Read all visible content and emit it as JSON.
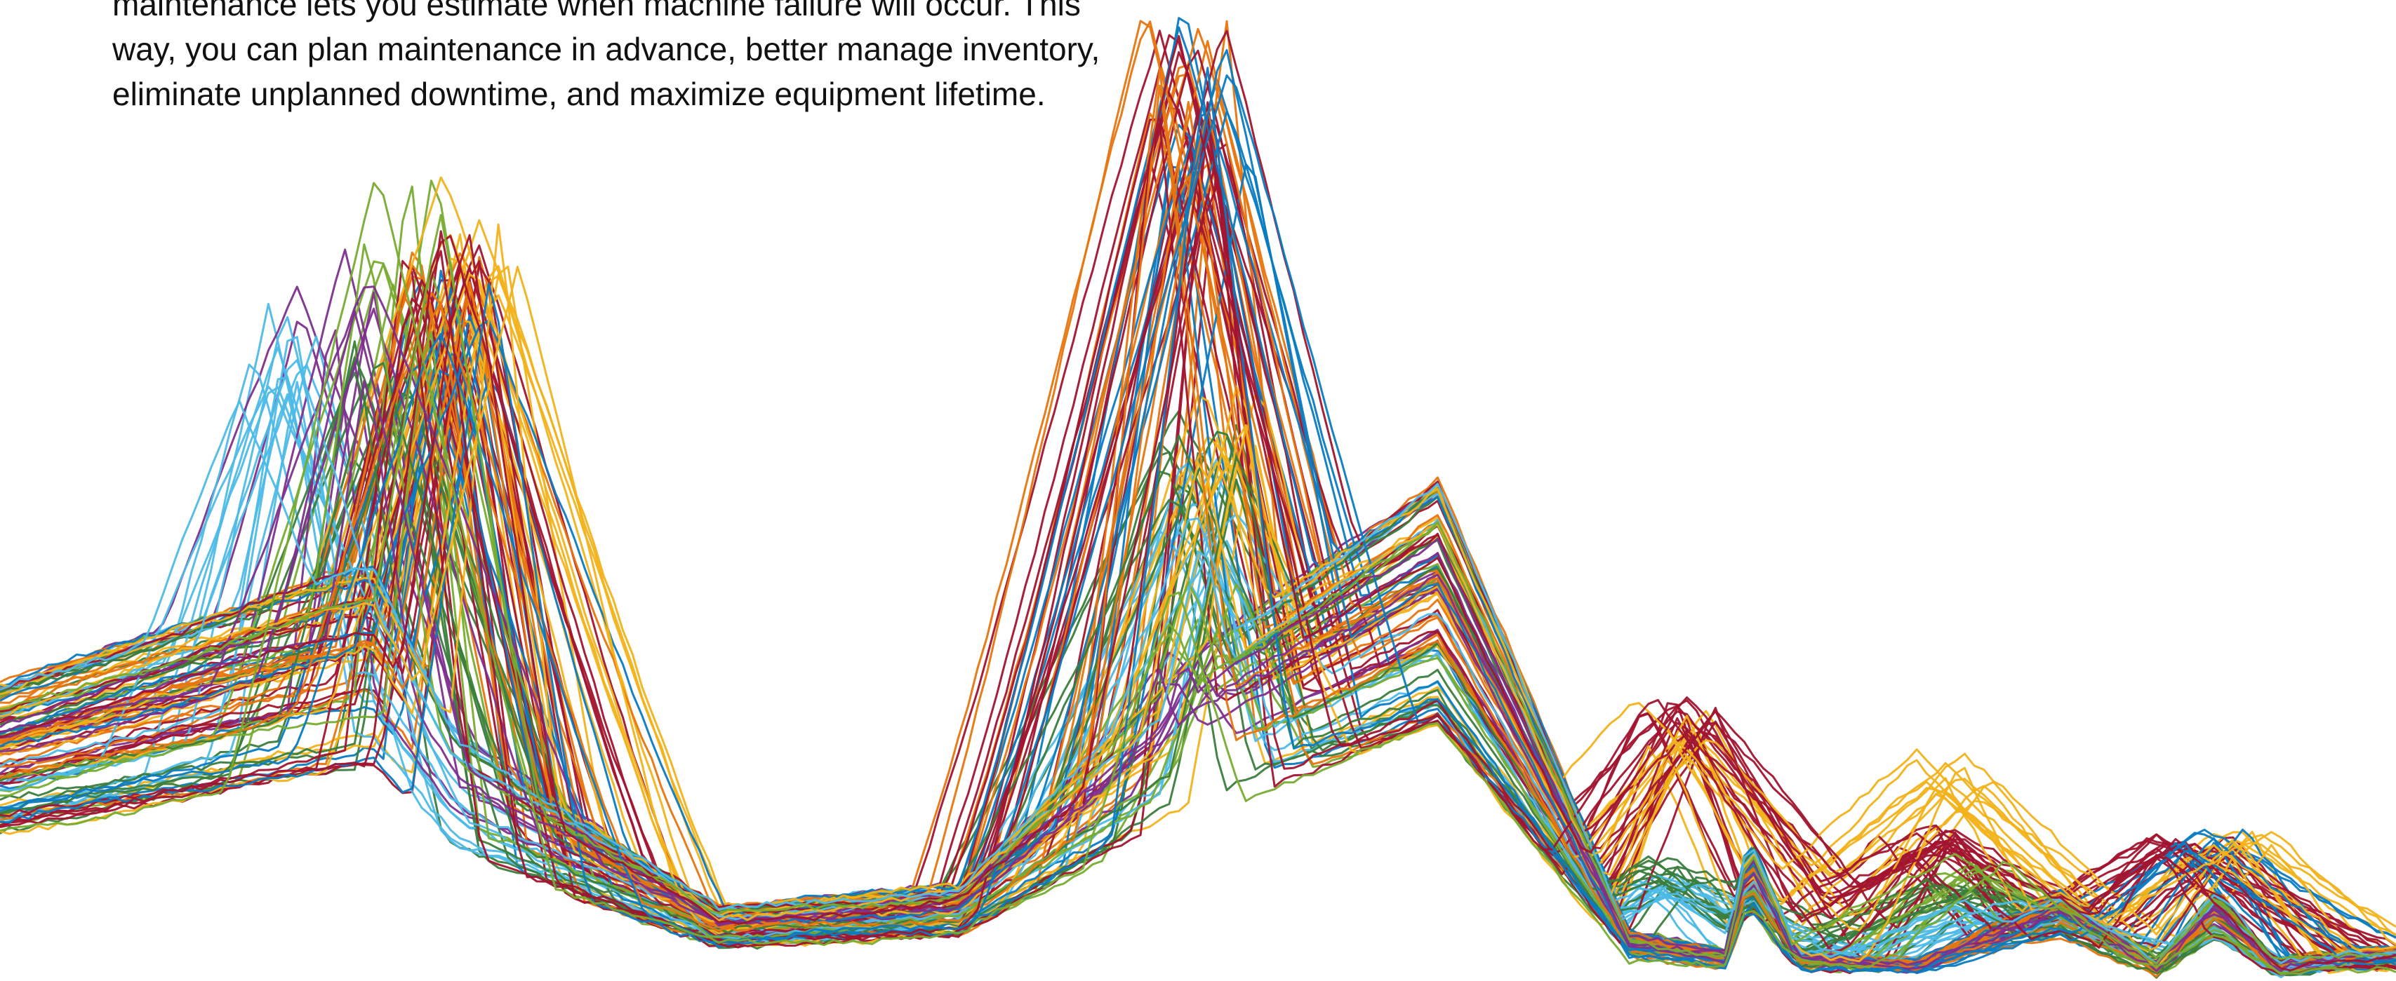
{
  "intro": {
    "lines": [
      "maintenance lets you estimate when machine failure will occur. This",
      "way, you can plan maintenance in advance, better manage inventory,",
      "eliminate unplanned downtime, and maximize equipment lifetime."
    ]
  },
  "chart_data": {
    "type": "line",
    "title": "",
    "xlabel": "",
    "ylabel": "",
    "axes_visible": false,
    "grid": false,
    "legend": "none",
    "xlim": [
      0,
      1
    ],
    "ylim": [
      0,
      1
    ],
    "trace_count": 112,
    "x": [
      0.0,
      0.1,
      0.155,
      0.19,
      0.3,
      0.4,
      0.5,
      0.6,
      0.68,
      0.72,
      0.73,
      0.75,
      0.8,
      0.86,
      0.9,
      0.925,
      0.95,
      0.98,
      1.0
    ],
    "baseline_profile": [
      0.5,
      0.64,
      0.71,
      0.42,
      0.12,
      0.16,
      0.56,
      0.85,
      0.08,
      0.05,
      0.25,
      0.05,
      0.03,
      0.15,
      0.03,
      0.15,
      0.03,
      0.05,
      0.05
    ],
    "colors": {
      "blue": "#0A7BC2",
      "light_blue": "#4DBBE8",
      "orange": "#E8750E",
      "yellow": "#F2B21A",
      "purple": "#7E2F8E",
      "green": "#3A7D3C",
      "light_green": "#77AC30",
      "dark_red": "#A2142F"
    },
    "series": [
      {
        "color": "#0A7BC2",
        "traces": 12,
        "peaks": [
          {
            "x": 0.19,
            "y": 0.71
          },
          {
            "x": 0.505,
            "y": 0.99
          },
          {
            "x": 0.925,
            "y": 0.15
          }
        ]
      },
      {
        "color": "#4DBBE8",
        "traces": 14,
        "peaks": [
          {
            "x": 0.115,
            "y": 0.66
          },
          {
            "x": 0.5,
            "y": 0.52
          },
          {
            "x": 0.7,
            "y": 0.1
          },
          {
            "x": 0.83,
            "y": 0.08
          }
        ]
      },
      {
        "color": "#E8750E",
        "traces": 16,
        "peaks": [
          {
            "x": 0.185,
            "y": 0.72
          },
          {
            "x": 0.495,
            "y": 0.95
          }
        ]
      },
      {
        "color": "#F2B21A",
        "traces": 14,
        "peaks": [
          {
            "x": 0.2,
            "y": 0.78
          },
          {
            "x": 0.51,
            "y": 0.6
          },
          {
            "x": 0.7,
            "y": 0.27
          },
          {
            "x": 0.815,
            "y": 0.22
          },
          {
            "x": 0.935,
            "y": 0.15
          }
        ]
      },
      {
        "color": "#7E2F8E",
        "traces": 10,
        "peaks": [
          {
            "x": 0.14,
            "y": 0.72
          },
          {
            "x": 0.5,
            "y": 0.35
          }
        ]
      },
      {
        "color": "#3A7D3C",
        "traces": 14,
        "peaks": [
          {
            "x": 0.16,
            "y": 0.62
          },
          {
            "x": 0.5,
            "y": 0.55
          },
          {
            "x": 0.7,
            "y": 0.12
          },
          {
            "x": 0.82,
            "y": 0.1
          }
        ]
      },
      {
        "color": "#77AC30",
        "traces": 10,
        "peaks": [
          {
            "x": 0.17,
            "y": 0.8
          },
          {
            "x": 0.5,
            "y": 0.4
          },
          {
            "x": 0.82,
            "y": 0.12
          }
        ]
      },
      {
        "color": "#A2142F",
        "traces": 22,
        "peaks": [
          {
            "x": 0.185,
            "y": 0.75
          },
          {
            "x": 0.495,
            "y": 0.93
          },
          {
            "x": 0.7,
            "y": 0.28
          },
          {
            "x": 0.8,
            "y": 0.15
          },
          {
            "x": 0.915,
            "y": 0.14
          }
        ]
      }
    ]
  }
}
